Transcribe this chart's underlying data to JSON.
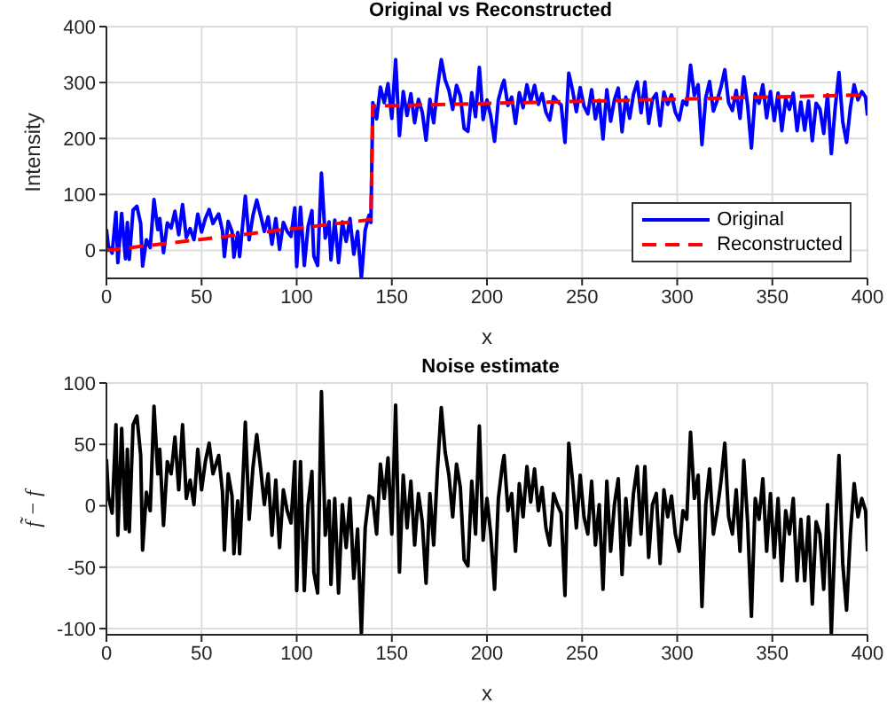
{
  "chart_data": [
    {
      "type": "line",
      "title": "Original vs Reconstructed",
      "xlabel": "x",
      "ylabel": "Intensity",
      "xlim": [
        0,
        400
      ],
      "xticks": [
        0,
        50,
        100,
        150,
        200,
        250,
        300,
        350,
        400
      ],
      "ylim": [
        -50,
        400
      ],
      "yticks": [
        0,
        100,
        200,
        300,
        400
      ],
      "grid": true,
      "legend": "bottom right",
      "marker": "none",
      "series": [
        {
          "name": "Original",
          "color": "#0000ff",
          "line_style": "solid",
          "x": [
            0,
            1,
            3,
            5,
            6,
            8,
            10,
            11,
            12,
            14,
            16,
            18,
            19,
            21,
            23,
            25,
            27,
            28,
            30,
            32,
            34,
            36,
            38,
            40,
            42,
            44,
            46,
            48,
            50,
            52,
            54,
            56,
            57,
            59,
            61,
            62,
            64,
            66,
            67,
            69,
            70,
            72,
            73,
            75,
            77,
            79,
            81,
            83,
            85,
            87,
            89,
            91,
            93,
            95,
            97,
            99,
            100,
            102,
            104,
            106,
            108,
            109,
            111,
            113,
            115,
            117,
            118,
            120,
            122,
            124,
            126,
            128,
            130,
            132,
            134,
            136,
            138,
            139,
            140,
            142,
            144,
            146,
            148,
            150,
            152,
            154,
            156,
            158,
            160,
            162,
            164,
            166,
            168,
            170,
            172,
            174,
            176,
            178,
            180,
            182,
            184,
            186,
            188,
            190,
            192,
            194,
            196,
            198,
            200,
            202,
            204,
            206,
            208,
            209,
            211,
            213,
            215,
            217,
            219,
            221,
            223,
            225,
            227,
            229,
            231,
            233,
            235,
            237,
            239,
            241,
            243,
            245,
            247,
            249,
            251,
            253,
            255,
            257,
            259,
            261,
            263,
            265,
            267,
            269,
            271,
            273,
            275,
            277,
            279,
            281,
            283,
            285,
            287,
            289,
            291,
            293,
            295,
            297,
            299,
            301,
            303,
            305,
            307,
            309,
            311,
            313,
            315,
            317,
            319,
            321,
            323,
            325,
            327,
            329,
            331,
            333,
            335,
            337,
            339,
            341,
            343,
            345,
            347,
            349,
            351,
            353,
            355,
            357,
            359,
            361,
            363,
            365,
            367,
            369,
            371,
            373,
            375,
            377,
            379,
            381,
            383,
            385,
            387,
            389,
            391,
            393,
            395,
            397,
            399,
            400
          ],
          "values": [
            38,
            8,
            -5,
            68,
            -22,
            66,
            -15,
            50,
            -16,
            72,
            79,
            48,
            -28,
            19,
            5,
            91,
            37,
            57,
            -4,
            49,
            40,
            70,
            28,
            82,
            23,
            39,
            19,
            65,
            33,
            57,
            73,
            48,
            54,
            65,
            35,
            -11,
            52,
            34,
            -12,
            32,
            -11,
            60,
            97,
            19,
            62,
            90,
            63,
            34,
            60,
            11,
            57,
            2,
            50,
            34,
            25,
            76,
            -29,
            77,
            -27,
            43,
            71,
            -10,
            -27,
            138,
            22,
            51,
            -17,
            54,
            -22,
            51,
            16,
            57,
            -7,
            34,
            -50,
            36,
            63,
            50,
            264,
            235,
            292,
            264,
            298,
            236,
            341,
            205,
            284,
            241,
            280,
            228,
            270,
            247,
            197,
            270,
            228,
            291,
            341,
            305,
            286,
            252,
            295,
            276,
            218,
            213,
            282,
            239,
            327,
            234,
            269,
            240,
            195,
            269,
            295,
            304,
            259,
            274,
            227,
            282,
            255,
            296,
            267,
            295,
            261,
            280,
            247,
            233,
            275,
            266,
            260,
            193,
            317,
            286,
            248,
            291,
            258,
            244,
            287,
            235,
            268,
            199,
            287,
            231,
            269,
            290,
            212,
            274,
            236,
            279,
            301,
            246,
            301,
            227,
            270,
            280,
            223,
            283,
            261,
            278,
            247,
            233,
            267,
            260,
            331,
            277,
            296,
            189,
            273,
            302,
            249,
            268,
            292,
            323,
            264,
            250,
            286,
            236,
            310,
            260,
            183,
            280,
            263,
            296,
            237,
            284,
            232,
            281,
            214,
            271,
            252,
            281,
            214,
            265,
            215,
            267,
            196,
            263,
            253,
            209,
            278,
            173,
            254,
            318,
            230,
            193,
            255,
            296,
            269,
            284,
            274,
            241
          ]
        },
        {
          "name": "Reconstructed",
          "color": "#ff0000",
          "line_style": "dashed",
          "x": [
            0,
            139,
            140,
            400
          ],
          "values": [
            0,
            55,
            258,
            278
          ]
        }
      ]
    },
    {
      "type": "line",
      "title": "Noise estimate",
      "xlabel": "x",
      "ylabel": "f̃ − f",
      "xlim": [
        0,
        400
      ],
      "xticks": [
        0,
        50,
        100,
        150,
        200,
        250,
        300,
        350,
        400
      ],
      "ylim": [
        -105,
        100
      ],
      "yticks": [
        -100,
        -50,
        0,
        50,
        100
      ],
      "grid": true,
      "marker": "none",
      "series": [
        {
          "color": "#000000",
          "line_style": "solid",
          "x": [
            0,
            1,
            3,
            5,
            6,
            8,
            10,
            11,
            12,
            14,
            16,
            18,
            19,
            21,
            23,
            25,
            27,
            28,
            30,
            32,
            34,
            36,
            38,
            40,
            42,
            44,
            46,
            48,
            50,
            52,
            54,
            56,
            57,
            59,
            61,
            62,
            64,
            66,
            67,
            69,
            70,
            72,
            73,
            75,
            77,
            79,
            81,
            83,
            85,
            87,
            89,
            91,
            93,
            95,
            97,
            99,
            100,
            102,
            104,
            106,
            108,
            109,
            111,
            113,
            115,
            117,
            118,
            120,
            122,
            124,
            126,
            128,
            130,
            132,
            134,
            136,
            138,
            140,
            142,
            144,
            146,
            148,
            150,
            152,
            154,
            156,
            158,
            160,
            162,
            164,
            166,
            168,
            170,
            172,
            174,
            176,
            178,
            180,
            182,
            184,
            186,
            188,
            190,
            192,
            194,
            196,
            198,
            200,
            202,
            204,
            206,
            208,
            209,
            211,
            213,
            215,
            217,
            219,
            221,
            223,
            225,
            227,
            229,
            231,
            233,
            235,
            237,
            239,
            241,
            243,
            245,
            247,
            249,
            251,
            253,
            255,
            257,
            259,
            261,
            263,
            265,
            267,
            269,
            271,
            273,
            275,
            277,
            279,
            281,
            283,
            285,
            287,
            289,
            291,
            293,
            295,
            297,
            299,
            301,
            303,
            305,
            307,
            309,
            311,
            313,
            315,
            317,
            319,
            321,
            323,
            325,
            327,
            329,
            331,
            333,
            335,
            337,
            339,
            341,
            343,
            345,
            347,
            349,
            351,
            353,
            355,
            357,
            359,
            361,
            363,
            365,
            367,
            369,
            371,
            373,
            375,
            377,
            379,
            381,
            383,
            385,
            387,
            389,
            391,
            393,
            395,
            397,
            399,
            400
          ],
          "values": [
            38,
            8,
            -6,
            66,
            -24,
            63,
            -19,
            46,
            -21,
            66,
            73,
            41,
            -36,
            11,
            -4,
            81,
            26,
            46,
            -16,
            36,
            26,
            56,
            13,
            66,
            6,
            21,
            1,
            46,
            13,
            36,
            51,
            26,
            31,
            41,
            11,
            -36,
            26,
            8,
            -39,
            4,
            -39,
            31,
            68,
            -11,
            31,
            58,
            31,
            1,
            26,
            -24,
            21,
            -34,
            13,
            -4,
            -14,
            36,
            -69,
            36,
            -69,
            1,
            28,
            -54,
            -71,
            93,
            -24,
            4,
            -64,
            6,
            -71,
            1,
            -34,
            6,
            -59,
            -19,
            -104,
            -18,
            8,
            6,
            -23,
            34,
            6,
            39,
            -23,
            82,
            -54,
            25,
            -18,
            20,
            -32,
            10,
            -13,
            -63,
            10,
            -32,
            30,
            80,
            44,
            25,
            -9,
            34,
            15,
            -44,
            -49,
            20,
            -23,
            65,
            -28,
            6,
            -23,
            -68,
            6,
            32,
            41,
            -4,
            10,
            -37,
            18,
            -9,
            32,
            3,
            30,
            -4,
            15,
            -18,
            -32,
            10,
            1,
            -6,
            -73,
            51,
            20,
            -18,
            25,
            -9,
            -23,
            20,
            -32,
            1,
            -68,
            20,
            -37,
            1,
            22,
            -56,
            6,
            -32,
            10,
            32,
            -23,
            32,
            -42,
            1,
            10,
            -47,
            13,
            -9,
            8,
            -23,
            -37,
            -4,
            -11,
            60,
            6,
            25,
            -82,
            1,
            30,
            -23,
            -4,
            20,
            51,
            -9,
            -23,
            13,
            -37,
            37,
            -13,
            -90,
            6,
            -11,
            22,
            -37,
            10,
            -42,
            6,
            -61,
            -4,
            -23,
            6,
            -61,
            -11,
            -61,
            -9,
            -80,
            -13,
            -23,
            -68,
            1,
            -104,
            -23,
            41,
            -47,
            -85,
            -23,
            18,
            -9,
            6,
            -4,
            -37
          ]
        }
      ]
    }
  ]
}
